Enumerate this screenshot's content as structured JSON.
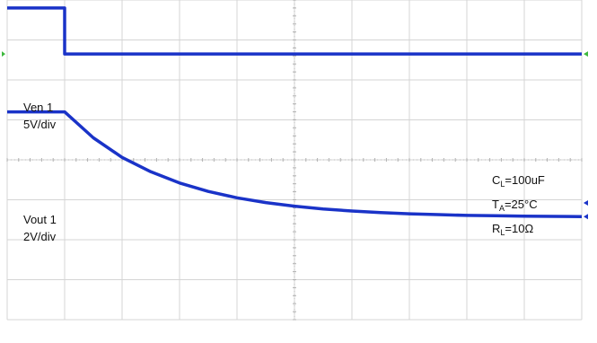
{
  "chart_data": {
    "type": "line",
    "title": "",
    "xlabel": "",
    "ylabel": "",
    "grid": true,
    "grid_divisions": {
      "x": 10,
      "y": 8
    },
    "xlim": [
      0,
      10
    ],
    "ylim": [
      0,
      8
    ],
    "trace_color": "#1a33c8",
    "grid_color": "#d4d4d4",
    "markers_color": "#3db83d",
    "series": [
      {
        "name": "Ven 1",
        "scale": "5V/div",
        "x": [
          0,
          1.0,
          1.0,
          10
        ],
        "y": [
          7.8,
          7.8,
          6.65,
          6.65
        ]
      },
      {
        "name": "Vout 1",
        "scale": "2V/div",
        "x": [
          0,
          1.0,
          1.5,
          2.0,
          2.5,
          3.0,
          3.5,
          4.0,
          4.5,
          5.0,
          5.5,
          6.0,
          6.5,
          7.0,
          7.5,
          8.0,
          8.5,
          9.0,
          10
        ],
        "y": [
          5.2,
          5.2,
          4.55,
          4.06,
          3.7,
          3.42,
          3.21,
          3.05,
          2.93,
          2.84,
          2.77,
          2.72,
          2.68,
          2.65,
          2.63,
          2.61,
          2.6,
          2.59,
          2.58
        ]
      }
    ],
    "annotations": {
      "cl": {
        "main": "C",
        "sub": "L",
        "rest": "=100uF"
      },
      "ta": {
        "main": "T",
        "sub": "A",
        "rest": "=25°C"
      },
      "rl": {
        "main": "R",
        "sub": "L",
        "rest": "=10Ω"
      }
    }
  }
}
